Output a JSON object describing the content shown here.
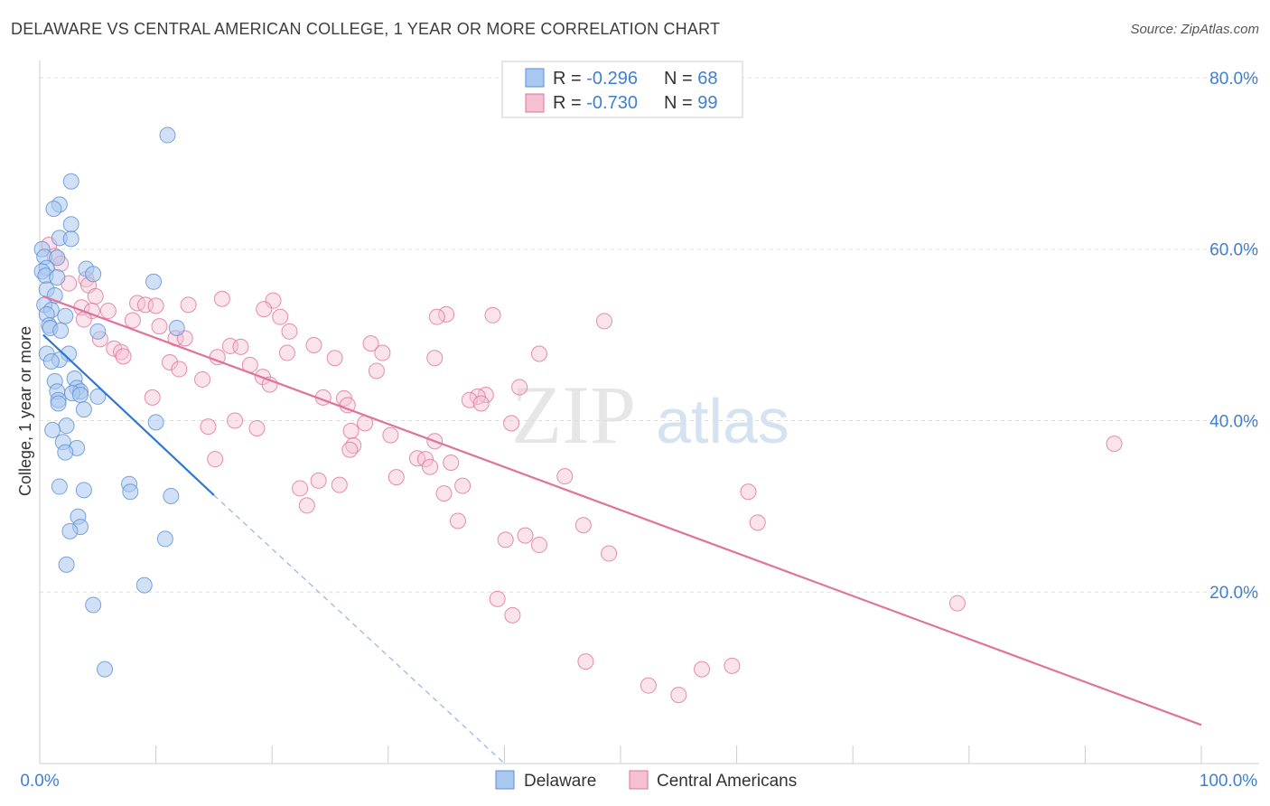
{
  "title": "DELAWARE VS CENTRAL AMERICAN COLLEGE, 1 YEAR OR MORE CORRELATION CHART",
  "source": "Source: ZipAtlas.com",
  "watermark": {
    "zip": "ZIP",
    "atlas": "atlas"
  },
  "colors": {
    "delaware": "#5b8fd6",
    "delaware_fill": "#a9c8f0",
    "central": "#e0729b",
    "central_fill": "#f5c0d2",
    "axis_value": "#3f7fd0",
    "grid": "#dddddd"
  },
  "legend": {
    "rows": [
      {
        "r_label": "R = ",
        "r_value": "-0.296",
        "n_label": "N = ",
        "n_value": "68"
      },
      {
        "r_label": "R = ",
        "r_value": "-0.730",
        "n_label": "N = ",
        "n_value": "99"
      }
    ]
  },
  "bottom_legend": [
    "Delaware",
    "Central Americans"
  ],
  "chart_data": {
    "type": "scatter",
    "xlabel": "",
    "ylabel": "College, 1 year or more",
    "xlim": [
      0,
      100
    ],
    "ylim": [
      0,
      82
    ],
    "x_tick_labels": [
      "0.0%",
      "100.0%"
    ],
    "y_ticks": [
      20,
      40,
      60,
      80
    ],
    "y_tick_labels": [
      "20.0%",
      "40.0%",
      "60.0%",
      "80.0%"
    ],
    "grid": true,
    "series": [
      {
        "name": "Delaware",
        "r": -0.296,
        "n": 68,
        "trend": {
          "x": [
            0.3,
            15.0
          ],
          "y": [
            50.0,
            31.3
          ],
          "dashed_to": {
            "x": 40.0,
            "y": 0.0
          }
        },
        "points": [
          [
            11.0,
            73.3
          ],
          [
            2.7,
            67.9
          ],
          [
            1.7,
            65.2
          ],
          [
            1.2,
            64.7
          ],
          [
            2.7,
            62.9
          ],
          [
            1.7,
            61.3
          ],
          [
            2.7,
            61.2
          ],
          [
            0.2,
            60.0
          ],
          [
            0.4,
            59.1
          ],
          [
            1.5,
            59.0
          ],
          [
            0.6,
            57.8
          ],
          [
            4.0,
            57.7
          ],
          [
            0.2,
            57.4
          ],
          [
            4.6,
            57.1
          ],
          [
            0.5,
            56.9
          ],
          [
            1.5,
            56.7
          ],
          [
            9.8,
            56.2
          ],
          [
            0.6,
            55.3
          ],
          [
            1.3,
            54.6
          ],
          [
            0.4,
            53.5
          ],
          [
            1.0,
            52.9
          ],
          [
            0.6,
            52.4
          ],
          [
            2.2,
            52.2
          ],
          [
            0.8,
            51.1
          ],
          [
            0.9,
            50.8
          ],
          [
            11.8,
            50.8
          ],
          [
            1.8,
            50.5
          ],
          [
            5.0,
            50.4
          ],
          [
            0.6,
            47.8
          ],
          [
            2.5,
            47.8
          ],
          [
            1.7,
            47.1
          ],
          [
            1.0,
            46.9
          ],
          [
            3.0,
            44.9
          ],
          [
            1.3,
            44.6
          ],
          [
            3.2,
            43.8
          ],
          [
            1.5,
            43.4
          ],
          [
            3.5,
            43.4
          ],
          [
            2.8,
            43.2
          ],
          [
            3.5,
            43.0
          ],
          [
            5.0,
            42.8
          ],
          [
            1.6,
            42.4
          ],
          [
            1.6,
            42.0
          ],
          [
            3.8,
            41.3
          ],
          [
            10.0,
            39.8
          ],
          [
            2.3,
            39.4
          ],
          [
            1.1,
            38.9
          ],
          [
            2.0,
            37.5
          ],
          [
            3.2,
            36.8
          ],
          [
            2.2,
            36.3
          ],
          [
            7.7,
            32.6
          ],
          [
            1.7,
            32.3
          ],
          [
            3.8,
            31.9
          ],
          [
            7.8,
            31.7
          ],
          [
            11.3,
            31.2
          ],
          [
            3.3,
            28.8
          ],
          [
            3.5,
            27.6
          ],
          [
            2.6,
            27.1
          ],
          [
            10.8,
            26.2
          ],
          [
            2.3,
            23.2
          ],
          [
            9.0,
            20.8
          ],
          [
            4.6,
            18.5
          ],
          [
            5.6,
            11.0
          ]
        ]
      },
      {
        "name": "Central Americans",
        "r": -0.73,
        "n": 99,
        "trend": {
          "x": [
            0.3,
            100.0
          ],
          "y": [
            54.5,
            4.5
          ]
        },
        "points": [
          [
            0.8,
            60.5
          ],
          [
            1.3,
            59.2
          ],
          [
            1.8,
            58.3
          ],
          [
            4.0,
            56.5
          ],
          [
            2.5,
            56.0
          ],
          [
            4.2,
            55.8
          ],
          [
            4.8,
            54.5
          ],
          [
            15.7,
            54.2
          ],
          [
            20.1,
            54.0
          ],
          [
            8.4,
            53.7
          ],
          [
            9.1,
            53.5
          ],
          [
            12.8,
            53.5
          ],
          [
            10.0,
            53.4
          ],
          [
            3.6,
            53.2
          ],
          [
            19.3,
            53.0
          ],
          [
            4.5,
            52.8
          ],
          [
            5.9,
            52.8
          ],
          [
            35.0,
            52.4
          ],
          [
            39.0,
            52.3
          ],
          [
            20.7,
            52.1
          ],
          [
            34.2,
            52.1
          ],
          [
            3.8,
            51.8
          ],
          [
            8.0,
            51.7
          ],
          [
            48.6,
            51.6
          ],
          [
            10.3,
            51.0
          ],
          [
            21.5,
            50.4
          ],
          [
            11.7,
            49.6
          ],
          [
            12.5,
            49.6
          ],
          [
            5.2,
            49.5
          ],
          [
            28.5,
            49.0
          ],
          [
            23.6,
            48.8
          ],
          [
            16.4,
            48.7
          ],
          [
            17.3,
            48.6
          ],
          [
            6.4,
            48.4
          ],
          [
            7.0,
            48.0
          ],
          [
            21.3,
            47.9
          ],
          [
            29.5,
            47.9
          ],
          [
            7.2,
            47.5
          ],
          [
            15.3,
            47.4
          ],
          [
            25.4,
            47.3
          ],
          [
            34.0,
            47.3
          ],
          [
            43.0,
            47.8
          ],
          [
            11.2,
            46.8
          ],
          [
            18.1,
            46.5
          ],
          [
            12.0,
            46.0
          ],
          [
            29.0,
            45.8
          ],
          [
            19.2,
            45.1
          ],
          [
            14.0,
            44.8
          ],
          [
            19.8,
            44.2
          ],
          [
            41.3,
            43.9
          ],
          [
            38.4,
            43.0
          ],
          [
            37.7,
            42.8
          ],
          [
            24.4,
            42.7
          ],
          [
            9.7,
            42.7
          ],
          [
            26.2,
            42.6
          ],
          [
            37.0,
            42.4
          ],
          [
            26.5,
            41.8
          ],
          [
            38.0,
            42.0
          ],
          [
            16.8,
            40.0
          ],
          [
            40.6,
            39.7
          ],
          [
            28.0,
            39.7
          ],
          [
            14.5,
            39.3
          ],
          [
            18.7,
            39.1
          ],
          [
            26.8,
            38.8
          ],
          [
            30.2,
            38.3
          ],
          [
            34.0,
            37.6
          ],
          [
            27.0,
            37.1
          ],
          [
            26.7,
            36.6
          ],
          [
            92.5,
            37.3
          ],
          [
            32.5,
            35.6
          ],
          [
            15.1,
            35.5
          ],
          [
            33.2,
            35.5
          ],
          [
            33.6,
            34.6
          ],
          [
            35.4,
            35.1
          ],
          [
            45.2,
            33.5
          ],
          [
            30.7,
            33.4
          ],
          [
            24.0,
            33.0
          ],
          [
            25.8,
            32.5
          ],
          [
            22.4,
            32.1
          ],
          [
            36.4,
            32.4
          ],
          [
            61.0,
            31.7
          ],
          [
            34.8,
            31.5
          ],
          [
            23.0,
            30.1
          ],
          [
            36.0,
            28.3
          ],
          [
            61.8,
            28.1
          ],
          [
            46.8,
            27.8
          ],
          [
            41.8,
            26.6
          ],
          [
            40.1,
            26.1
          ],
          [
            43.0,
            25.5
          ],
          [
            49.0,
            24.5
          ],
          [
            79.0,
            18.7
          ],
          [
            39.4,
            19.2
          ],
          [
            40.7,
            17.3
          ],
          [
            47.0,
            11.9
          ],
          [
            59.6,
            11.4
          ],
          [
            57.0,
            11.0
          ],
          [
            52.4,
            9.1
          ],
          [
            55.0,
            8.0
          ]
        ]
      }
    ]
  }
}
